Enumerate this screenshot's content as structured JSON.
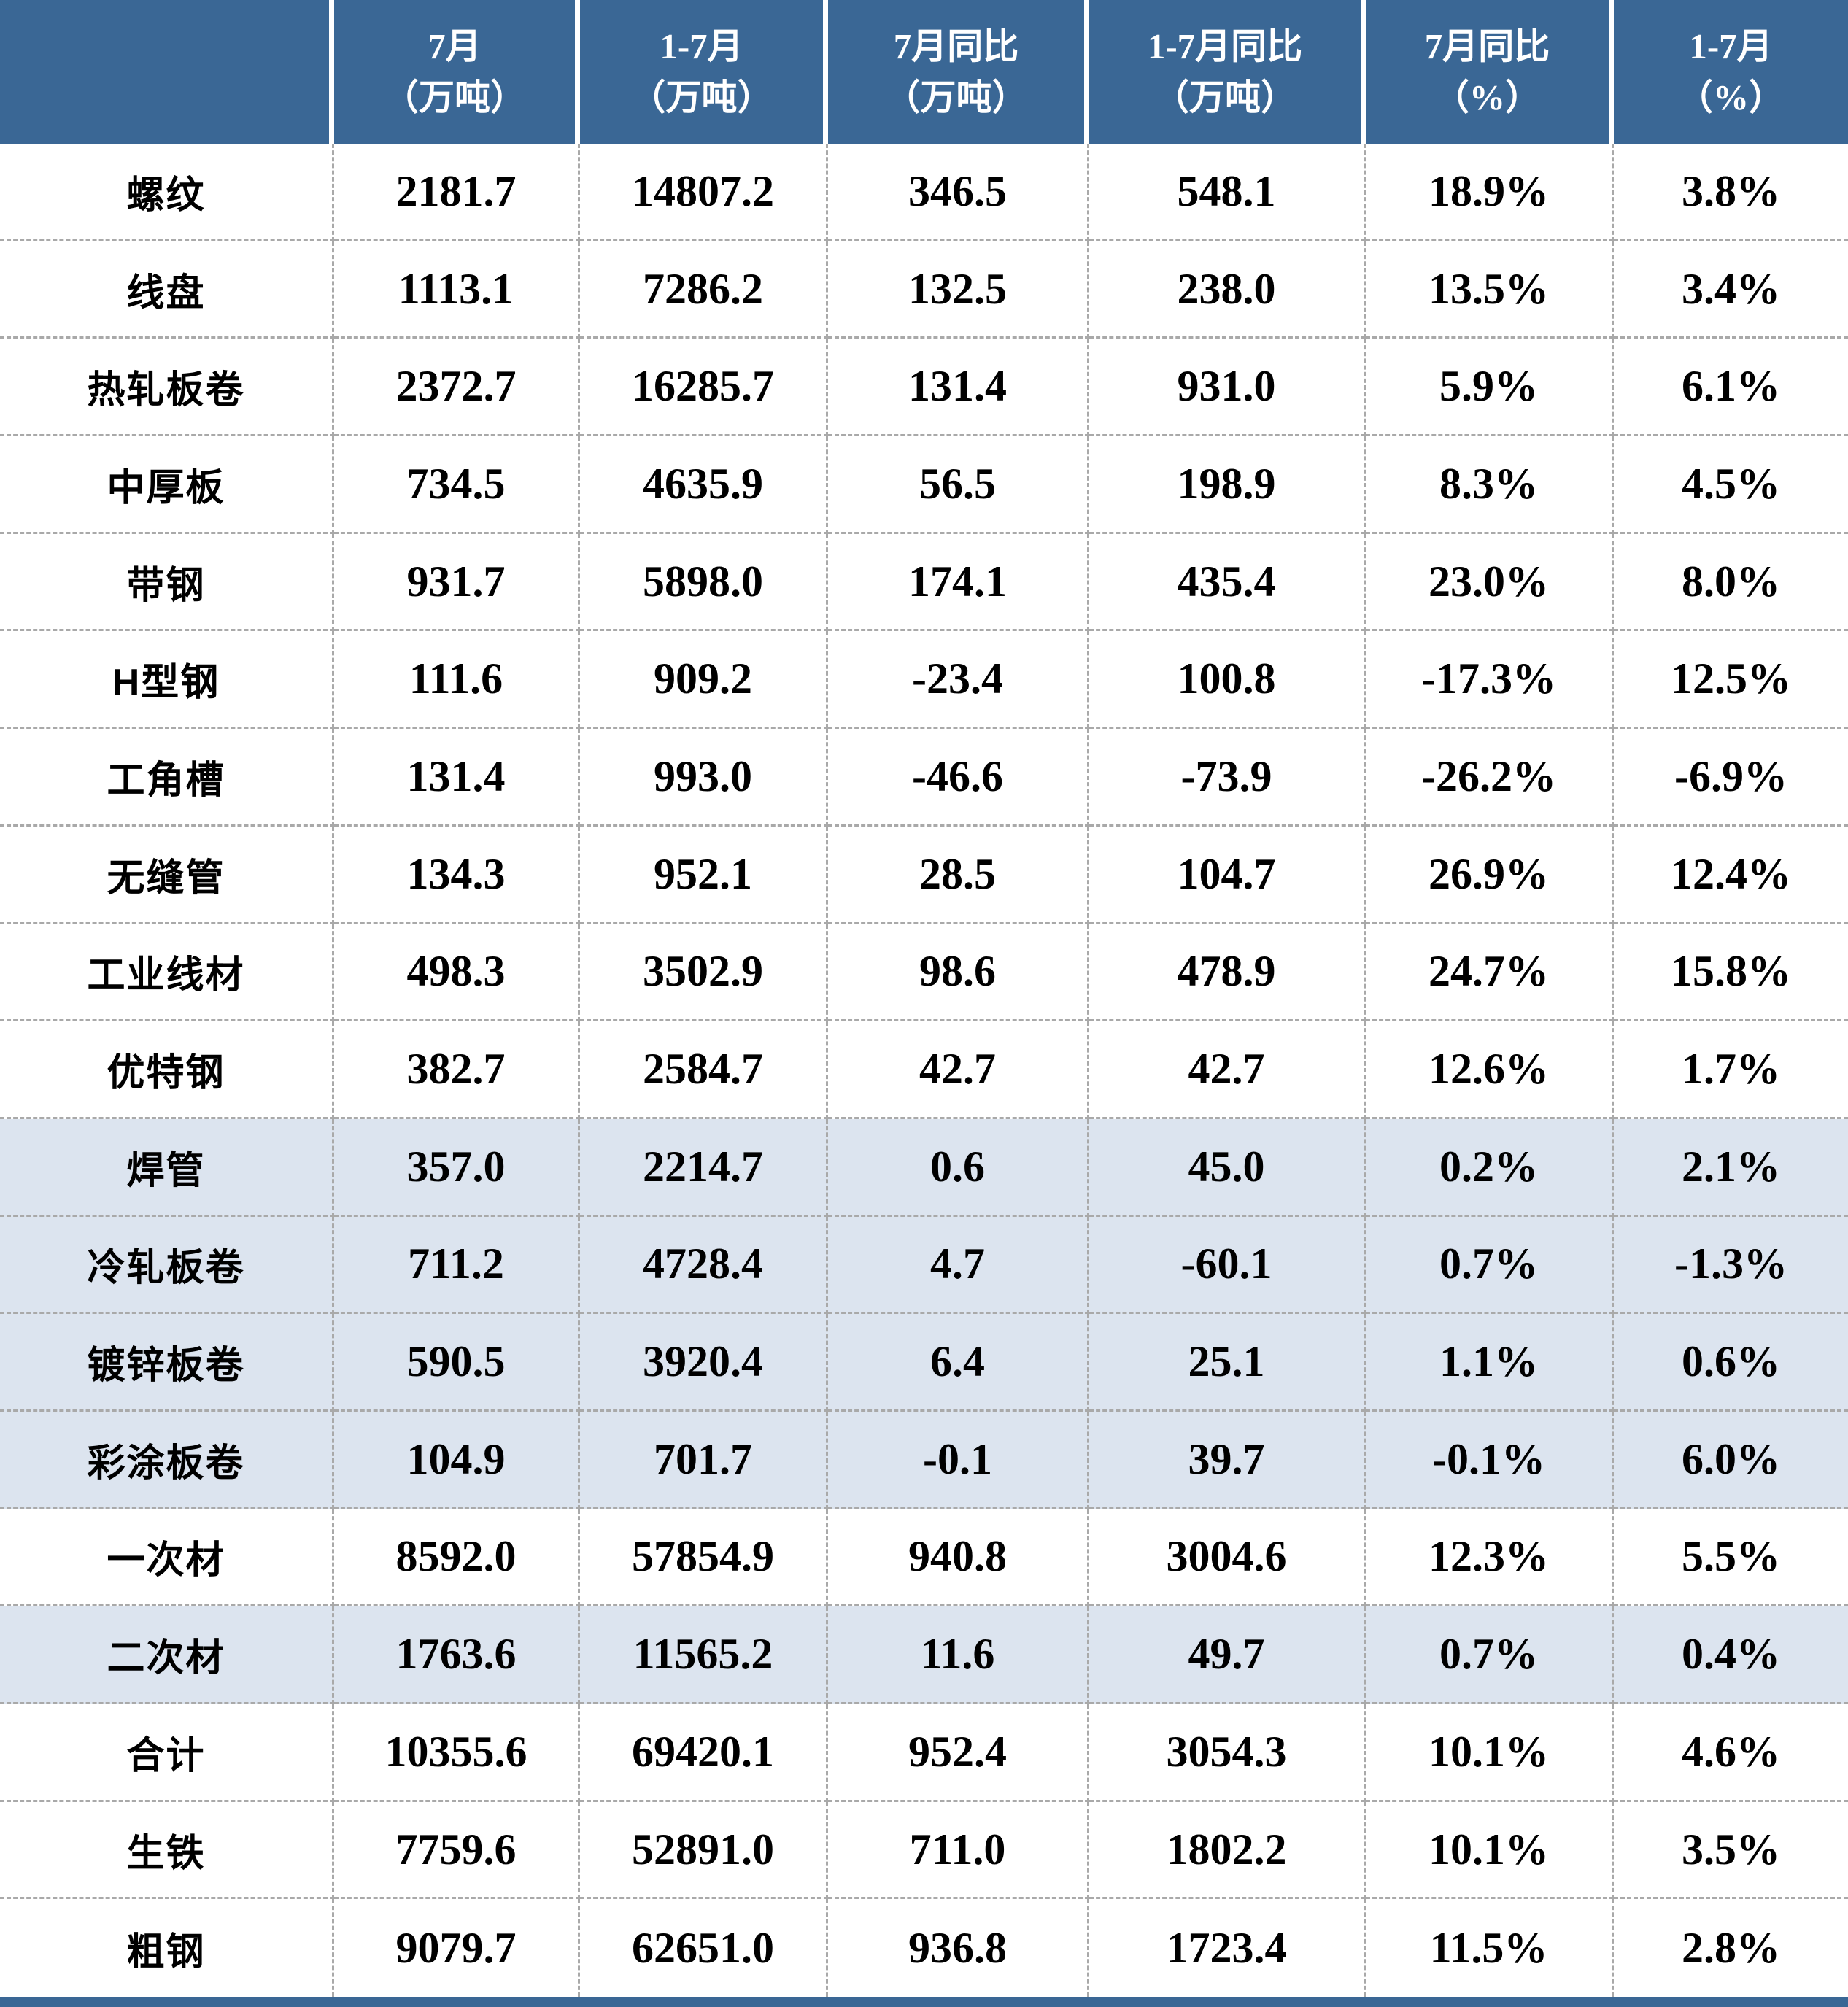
{
  "chart_data": {
    "type": "table",
    "title": "",
    "corner_header": "",
    "columns": [
      {
        "title": "7月",
        "unit": "（万吨）"
      },
      {
        "title": "1-7月",
        "unit": "（万吨）"
      },
      {
        "title": "7月同比",
        "unit": "（万吨）"
      },
      {
        "title": "1-7月同比",
        "unit": "（万吨）"
      },
      {
        "title": "7月同比",
        "unit": "（%）"
      },
      {
        "title": "1-7月",
        "unit": "（%）"
      }
    ],
    "rows": [
      {
        "label": "螺纹",
        "values": [
          "2181.7",
          "14807.2",
          "346.5",
          "548.1",
          "18.9%",
          "3.8%"
        ],
        "shaded": false
      },
      {
        "label": "线盘",
        "values": [
          "1113.1",
          "7286.2",
          "132.5",
          "238.0",
          "13.5%",
          "3.4%"
        ],
        "shaded": false
      },
      {
        "label": "热轧板卷",
        "values": [
          "2372.7",
          "16285.7",
          "131.4",
          "931.0",
          "5.9%",
          "6.1%"
        ],
        "shaded": false
      },
      {
        "label": "中厚板",
        "values": [
          "734.5",
          "4635.9",
          "56.5",
          "198.9",
          "8.3%",
          "4.5%"
        ],
        "shaded": false
      },
      {
        "label": "带钢",
        "values": [
          "931.7",
          "5898.0",
          "174.1",
          "435.4",
          "23.0%",
          "8.0%"
        ],
        "shaded": false
      },
      {
        "label": "H型钢",
        "values": [
          "111.6",
          "909.2",
          "-23.4",
          "100.8",
          "-17.3%",
          "12.5%"
        ],
        "shaded": false
      },
      {
        "label": "工角槽",
        "values": [
          "131.4",
          "993.0",
          "-46.6",
          "-73.9",
          "-26.2%",
          "-6.9%"
        ],
        "shaded": false
      },
      {
        "label": "无缝管",
        "values": [
          "134.3",
          "952.1",
          "28.5",
          "104.7",
          "26.9%",
          "12.4%"
        ],
        "shaded": false
      },
      {
        "label": "工业线材",
        "values": [
          "498.3",
          "3502.9",
          "98.6",
          "478.9",
          "24.7%",
          "15.8%"
        ],
        "shaded": false
      },
      {
        "label": "优特钢",
        "values": [
          "382.7",
          "2584.7",
          "42.7",
          "42.7",
          "12.6%",
          "1.7%"
        ],
        "shaded": false
      },
      {
        "label": "焊管",
        "values": [
          "357.0",
          "2214.7",
          "0.6",
          "45.0",
          "0.2%",
          "2.1%"
        ],
        "shaded": true
      },
      {
        "label": "冷轧板卷",
        "values": [
          "711.2",
          "4728.4",
          "4.7",
          "-60.1",
          "0.7%",
          "-1.3%"
        ],
        "shaded": true
      },
      {
        "label": "镀锌板卷",
        "values": [
          "590.5",
          "3920.4",
          "6.4",
          "25.1",
          "1.1%",
          "0.6%"
        ],
        "shaded": true
      },
      {
        "label": "彩涂板卷",
        "values": [
          "104.9",
          "701.7",
          "-0.1",
          "39.7",
          "-0.1%",
          "6.0%"
        ],
        "shaded": true
      },
      {
        "label": "一次材",
        "values": [
          "8592.0",
          "57854.9",
          "940.8",
          "3004.6",
          "12.3%",
          "5.5%"
        ],
        "shaded": false
      },
      {
        "label": "二次材",
        "values": [
          "1763.6",
          "11565.2",
          "11.6",
          "49.7",
          "0.7%",
          "0.4%"
        ],
        "shaded": true
      },
      {
        "label": "合计",
        "values": [
          "10355.6",
          "69420.1",
          "952.4",
          "3054.3",
          "10.1%",
          "4.6%"
        ],
        "shaded": false
      },
      {
        "label": "生铁",
        "values": [
          "7759.6",
          "52891.0",
          "711.0",
          "1802.2",
          "10.1%",
          "3.5%"
        ],
        "shaded": false
      },
      {
        "label": "粗钢",
        "values": [
          "9079.7",
          "62651.0",
          "936.8",
          "1723.4",
          "11.5%",
          "2.8%"
        ],
        "shaded": false
      }
    ]
  },
  "colors": {
    "header_bg": "#3a6795",
    "header_text": "#ffffff",
    "row_shaded": "#dce4ef",
    "grid_dash": "#a9a9a9",
    "bar_bg": "#3a6795",
    "body_text": "#000000"
  }
}
